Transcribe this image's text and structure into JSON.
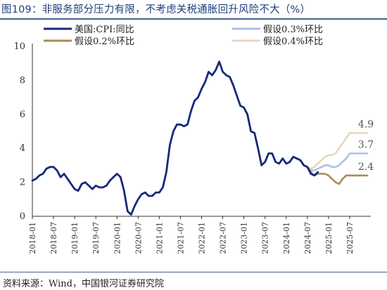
{
  "title": "图109：非服务部分压力有限，不考虑关税通胀回升风险不大（%）",
  "source": "资料来源：Wind，中国银河证券研究院",
  "chart_data": {
    "type": "line",
    "title": "图109：非服务部分压力有限，不考虑关税通胀回升风险不大（%）",
    "xlabel": "",
    "ylabel": "",
    "ylim": [
      0,
      10
    ],
    "yticks": [
      0,
      2,
      4,
      6,
      8,
      10
    ],
    "xlim": [
      "2018-01",
      "2025-12"
    ],
    "xticks": [
      "2018-01",
      "2018-07",
      "2019-01",
      "2019-07",
      "2020-01",
      "2020-07",
      "2021-01",
      "2021-07",
      "2022-01",
      "2022-07",
      "2023-01",
      "2023-07",
      "2024-01",
      "2024-07",
      "2025-01",
      "2025-07"
    ],
    "grid": false,
    "legend_placement": "top",
    "series": [
      {
        "name": "美国:CPI:同比",
        "color": "#16297a",
        "x": [
          "2018-01",
          "2018-02",
          "2018-03",
          "2018-04",
          "2018-05",
          "2018-06",
          "2018-07",
          "2018-08",
          "2018-09",
          "2018-10",
          "2018-11",
          "2018-12",
          "2019-01",
          "2019-02",
          "2019-03",
          "2019-04",
          "2019-05",
          "2019-06",
          "2019-07",
          "2019-08",
          "2019-09",
          "2019-10",
          "2019-11",
          "2019-12",
          "2020-01",
          "2020-02",
          "2020-03",
          "2020-04",
          "2020-05",
          "2020-06",
          "2020-07",
          "2020-08",
          "2020-09",
          "2020-10",
          "2020-11",
          "2020-12",
          "2021-01",
          "2021-02",
          "2021-03",
          "2021-04",
          "2021-05",
          "2021-06",
          "2021-07",
          "2021-08",
          "2021-09",
          "2021-10",
          "2021-11",
          "2021-12",
          "2022-01",
          "2022-02",
          "2022-03",
          "2022-04",
          "2022-05",
          "2022-06",
          "2022-07",
          "2022-08",
          "2022-09",
          "2022-10",
          "2022-11",
          "2022-12",
          "2023-01",
          "2023-02",
          "2023-03",
          "2023-04",
          "2023-05",
          "2023-06",
          "2023-07",
          "2023-08",
          "2023-09",
          "2023-10",
          "2023-11",
          "2023-12",
          "2024-01",
          "2024-02",
          "2024-03",
          "2024-04",
          "2024-05",
          "2024-06",
          "2024-07",
          "2024-08",
          "2024-09",
          "2024-10"
        ],
        "values": [
          2.1,
          2.2,
          2.4,
          2.5,
          2.8,
          2.9,
          2.9,
          2.7,
          2.3,
          2.5,
          2.2,
          1.9,
          1.6,
          1.5,
          1.9,
          2.0,
          1.8,
          1.6,
          1.8,
          1.7,
          1.7,
          1.8,
          2.1,
          2.3,
          2.5,
          2.3,
          1.5,
          0.3,
          0.1,
          0.6,
          1.0,
          1.3,
          1.4,
          1.2,
          1.2,
          1.4,
          1.4,
          1.7,
          2.6,
          4.2,
          5.0,
          5.4,
          5.4,
          5.3,
          5.4,
          6.2,
          6.8,
          7.0,
          7.5,
          7.9,
          8.5,
          8.3,
          8.6,
          9.1,
          8.5,
          8.3,
          8.2,
          7.7,
          7.1,
          6.5,
          6.4,
          6.0,
          5.0,
          4.9,
          4.0,
          3.0,
          3.2,
          3.7,
          3.7,
          3.2,
          3.1,
          3.4,
          3.1,
          3.2,
          3.5,
          3.4,
          3.3,
          3.0,
          2.9,
          2.5,
          2.4,
          2.6
        ]
      },
      {
        "name": "假设0.2%环比",
        "color": "#a88a5a",
        "x": [
          "2024-01",
          "2024-02",
          "2024-03",
          "2024-04",
          "2024-05",
          "2024-06",
          "2024-07",
          "2024-08",
          "2024-09",
          "2024-10",
          "2024-11",
          "2024-12",
          "2025-01",
          "2025-02",
          "2025-03",
          "2025-04",
          "2025-05",
          "2025-06",
          "2025-07",
          "2025-08",
          "2025-09",
          "2025-10",
          "2025-11",
          "2025-12"
        ],
        "values": [
          3.1,
          3.2,
          3.5,
          3.4,
          3.3,
          3.0,
          2.9,
          2.6,
          2.4,
          2.5,
          2.5,
          2.5,
          2.4,
          2.2,
          2.0,
          1.9,
          2.2,
          2.4,
          2.4,
          2.4,
          2.4,
          2.4,
          2.4,
          2.4
        ]
      },
      {
        "name": "假设0.3%环比",
        "color": "#adc0ea",
        "x": [
          "2024-01",
          "2024-02",
          "2024-03",
          "2024-04",
          "2024-05",
          "2024-06",
          "2024-07",
          "2024-08",
          "2024-09",
          "2024-10",
          "2024-11",
          "2024-12",
          "2025-01",
          "2025-02",
          "2025-03",
          "2025-04",
          "2025-05",
          "2025-06",
          "2025-07",
          "2025-08",
          "2025-09",
          "2025-10",
          "2025-11",
          "2025-12"
        ],
        "values": [
          3.1,
          3.2,
          3.5,
          3.4,
          3.3,
          3.0,
          2.9,
          2.7,
          2.7,
          2.8,
          2.9,
          3.0,
          3.0,
          2.9,
          2.9,
          3.0,
          3.2,
          3.4,
          3.7,
          3.7,
          3.7,
          3.7,
          3.7,
          3.7
        ]
      },
      {
        "name": "假设0.4%环比",
        "color": "#e6d7bf",
        "x": [
          "2024-01",
          "2024-02",
          "2024-03",
          "2024-04",
          "2024-05",
          "2024-06",
          "2024-07",
          "2024-08",
          "2024-09",
          "2024-10",
          "2024-11",
          "2024-12",
          "2025-01",
          "2025-02",
          "2025-03",
          "2025-04",
          "2025-05",
          "2025-06",
          "2025-07",
          "2025-08",
          "2025-09",
          "2025-10",
          "2025-11",
          "2025-12"
        ],
        "values": [
          3.1,
          3.2,
          3.5,
          3.4,
          3.3,
          3.0,
          2.9,
          2.8,
          2.9,
          3.1,
          3.3,
          3.5,
          3.6,
          3.6,
          3.7,
          4.0,
          4.3,
          4.6,
          4.9,
          4.9,
          4.9,
          4.9,
          4.9,
          4.9
        ]
      }
    ],
    "annotations": [
      {
        "text": "4.9",
        "color": "#555555",
        "series": "假设0.4%环比"
      },
      {
        "text": "3.7",
        "color": "#555555",
        "series": "假设0.3%环比"
      },
      {
        "text": "2.4",
        "color": "#555555",
        "series": "假设0.2%环比"
      }
    ]
  }
}
